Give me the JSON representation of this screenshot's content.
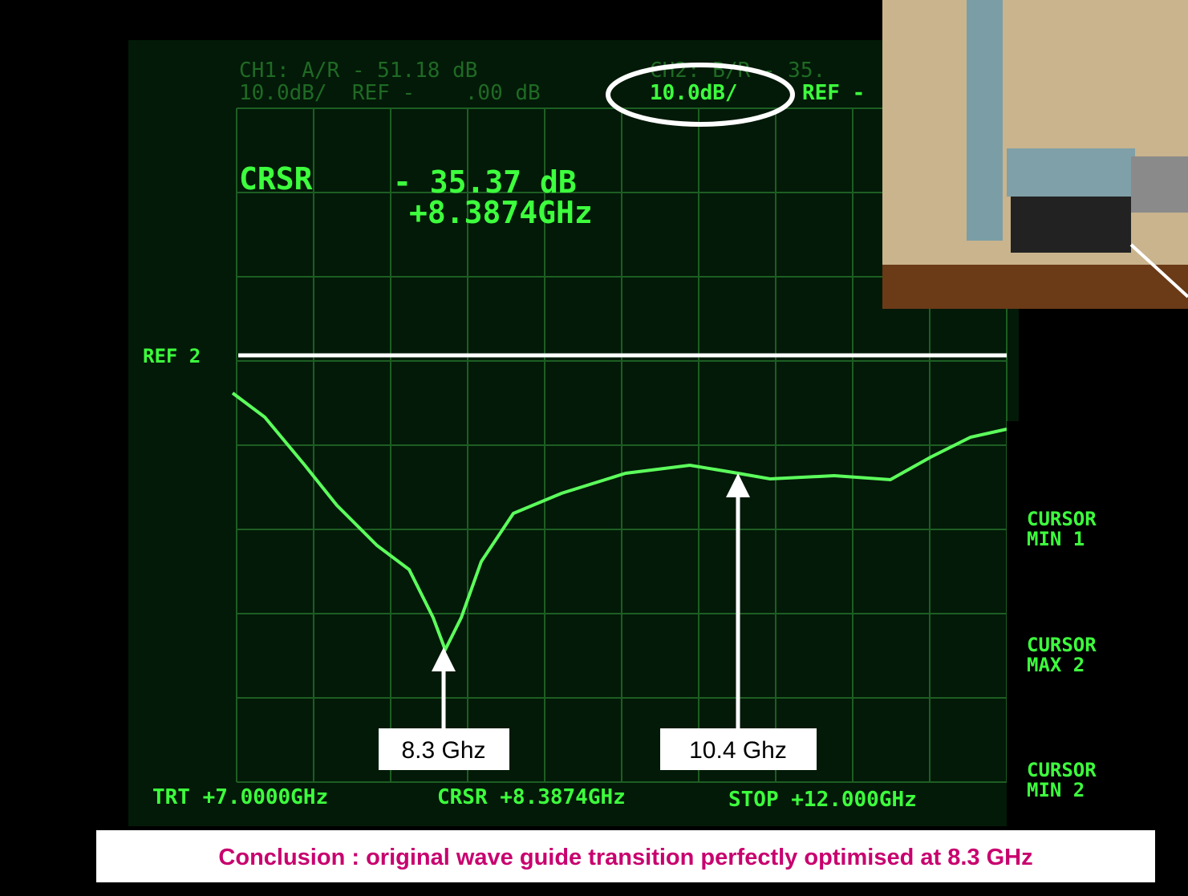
{
  "screen": {
    "header": {
      "ch1_line1": "CH1: A/R - 51.18 dB",
      "ch1_line2": "10.0dB/  REF -    .00 dB",
      "ch2_line1": "CH2: B/R - 35.",
      "ch2_scale": "10.0dB/",
      "ch2_ref": "REF -"
    },
    "cursor": {
      "label": "CRSR",
      "level": "- 35.37 dB",
      "freq": "+8.3874GHz"
    },
    "ref_label": "REF 2",
    "footer": {
      "start": "TRT +7.0000GHz",
      "cursor": "CRSR +8.3874GHz",
      "stop": "STOP +12.000GHz"
    },
    "softkeys": [
      {
        "line1": "CURSOR",
        "line2": "MIN 1"
      },
      {
        "line1": "CURSOR",
        "line2": "MAX 2"
      },
      {
        "line1": "CURSOR",
        "line2": "MIN 2"
      }
    ]
  },
  "annotations": {
    "dip": "8.3 Ghz",
    "peak": "10.4 Ghz"
  },
  "conclusion": "Conclusion : original wave guide transition perfectly optimised at 8.3 GHz"
}
